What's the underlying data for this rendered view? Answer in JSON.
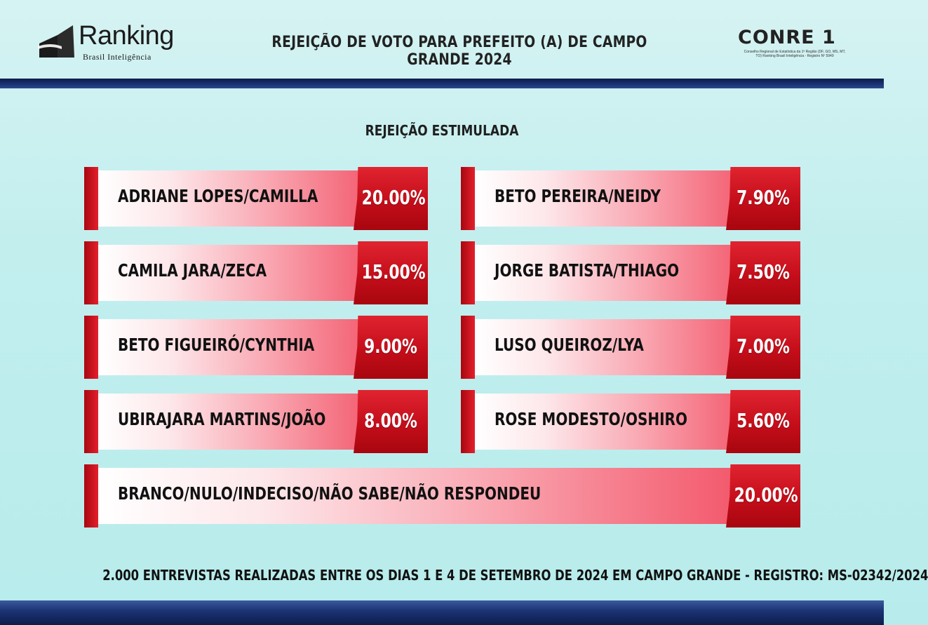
{
  "header": {
    "brand": "Ranking",
    "brand_sub": "Brasil Inteligência",
    "title": "REJEIÇÃO DE VOTO PARA PREFEITO (A) DE CAMPO GRANDE 2024",
    "conre": "CONRE 1",
    "conre_fine": "Conselho Regional de Estatística da 1ª Região (DF, GO, MS, MT, TO) Ranking Brasil Inteligência - Registro Nº 5949"
  },
  "subtitle": "REJEIÇÃO ESTIMULADA",
  "colors": {
    "accent_red": "#c40e1a",
    "bar_dark_blue": "#1c3575"
  },
  "chart_data": {
    "type": "bar",
    "title": "REJEIÇÃO ESTIMULADA",
    "categories": [
      "ADRIANE LOPES/CAMILLA",
      "CAMILA JARA/ZECA",
      "BETO FIGUEIRÓ/CYNTHIA",
      "UBIRAJARA MARTINS/JOÃO",
      "BETO PEREIRA/NEIDY",
      "JORGE BATISTA/THIAGO",
      "LUSO QUEIROZ/LYA",
      "ROSE MODESTO/OSHIRO",
      "BRANCO/NULO/INDECISO/NÃO SABE/NÃO RESPONDEU"
    ],
    "values": [
      20.0,
      15.0,
      9.0,
      8.0,
      7.9,
      7.5,
      7.0,
      5.6,
      20.0
    ],
    "value_labels": [
      "20.00%",
      "15.00%",
      "9.00%",
      "8.00%",
      "7.90%",
      "7.50%",
      "7.00%",
      "5.60%",
      "20.00%"
    ]
  },
  "footer": "2.000 ENTREVISTAS REALIZADAS ENTRE OS DIAS 1 E 4 DE SETEMBRO DE 2024 EM CAMPO GRANDE - REGISTRO:  MS-02342/2024"
}
